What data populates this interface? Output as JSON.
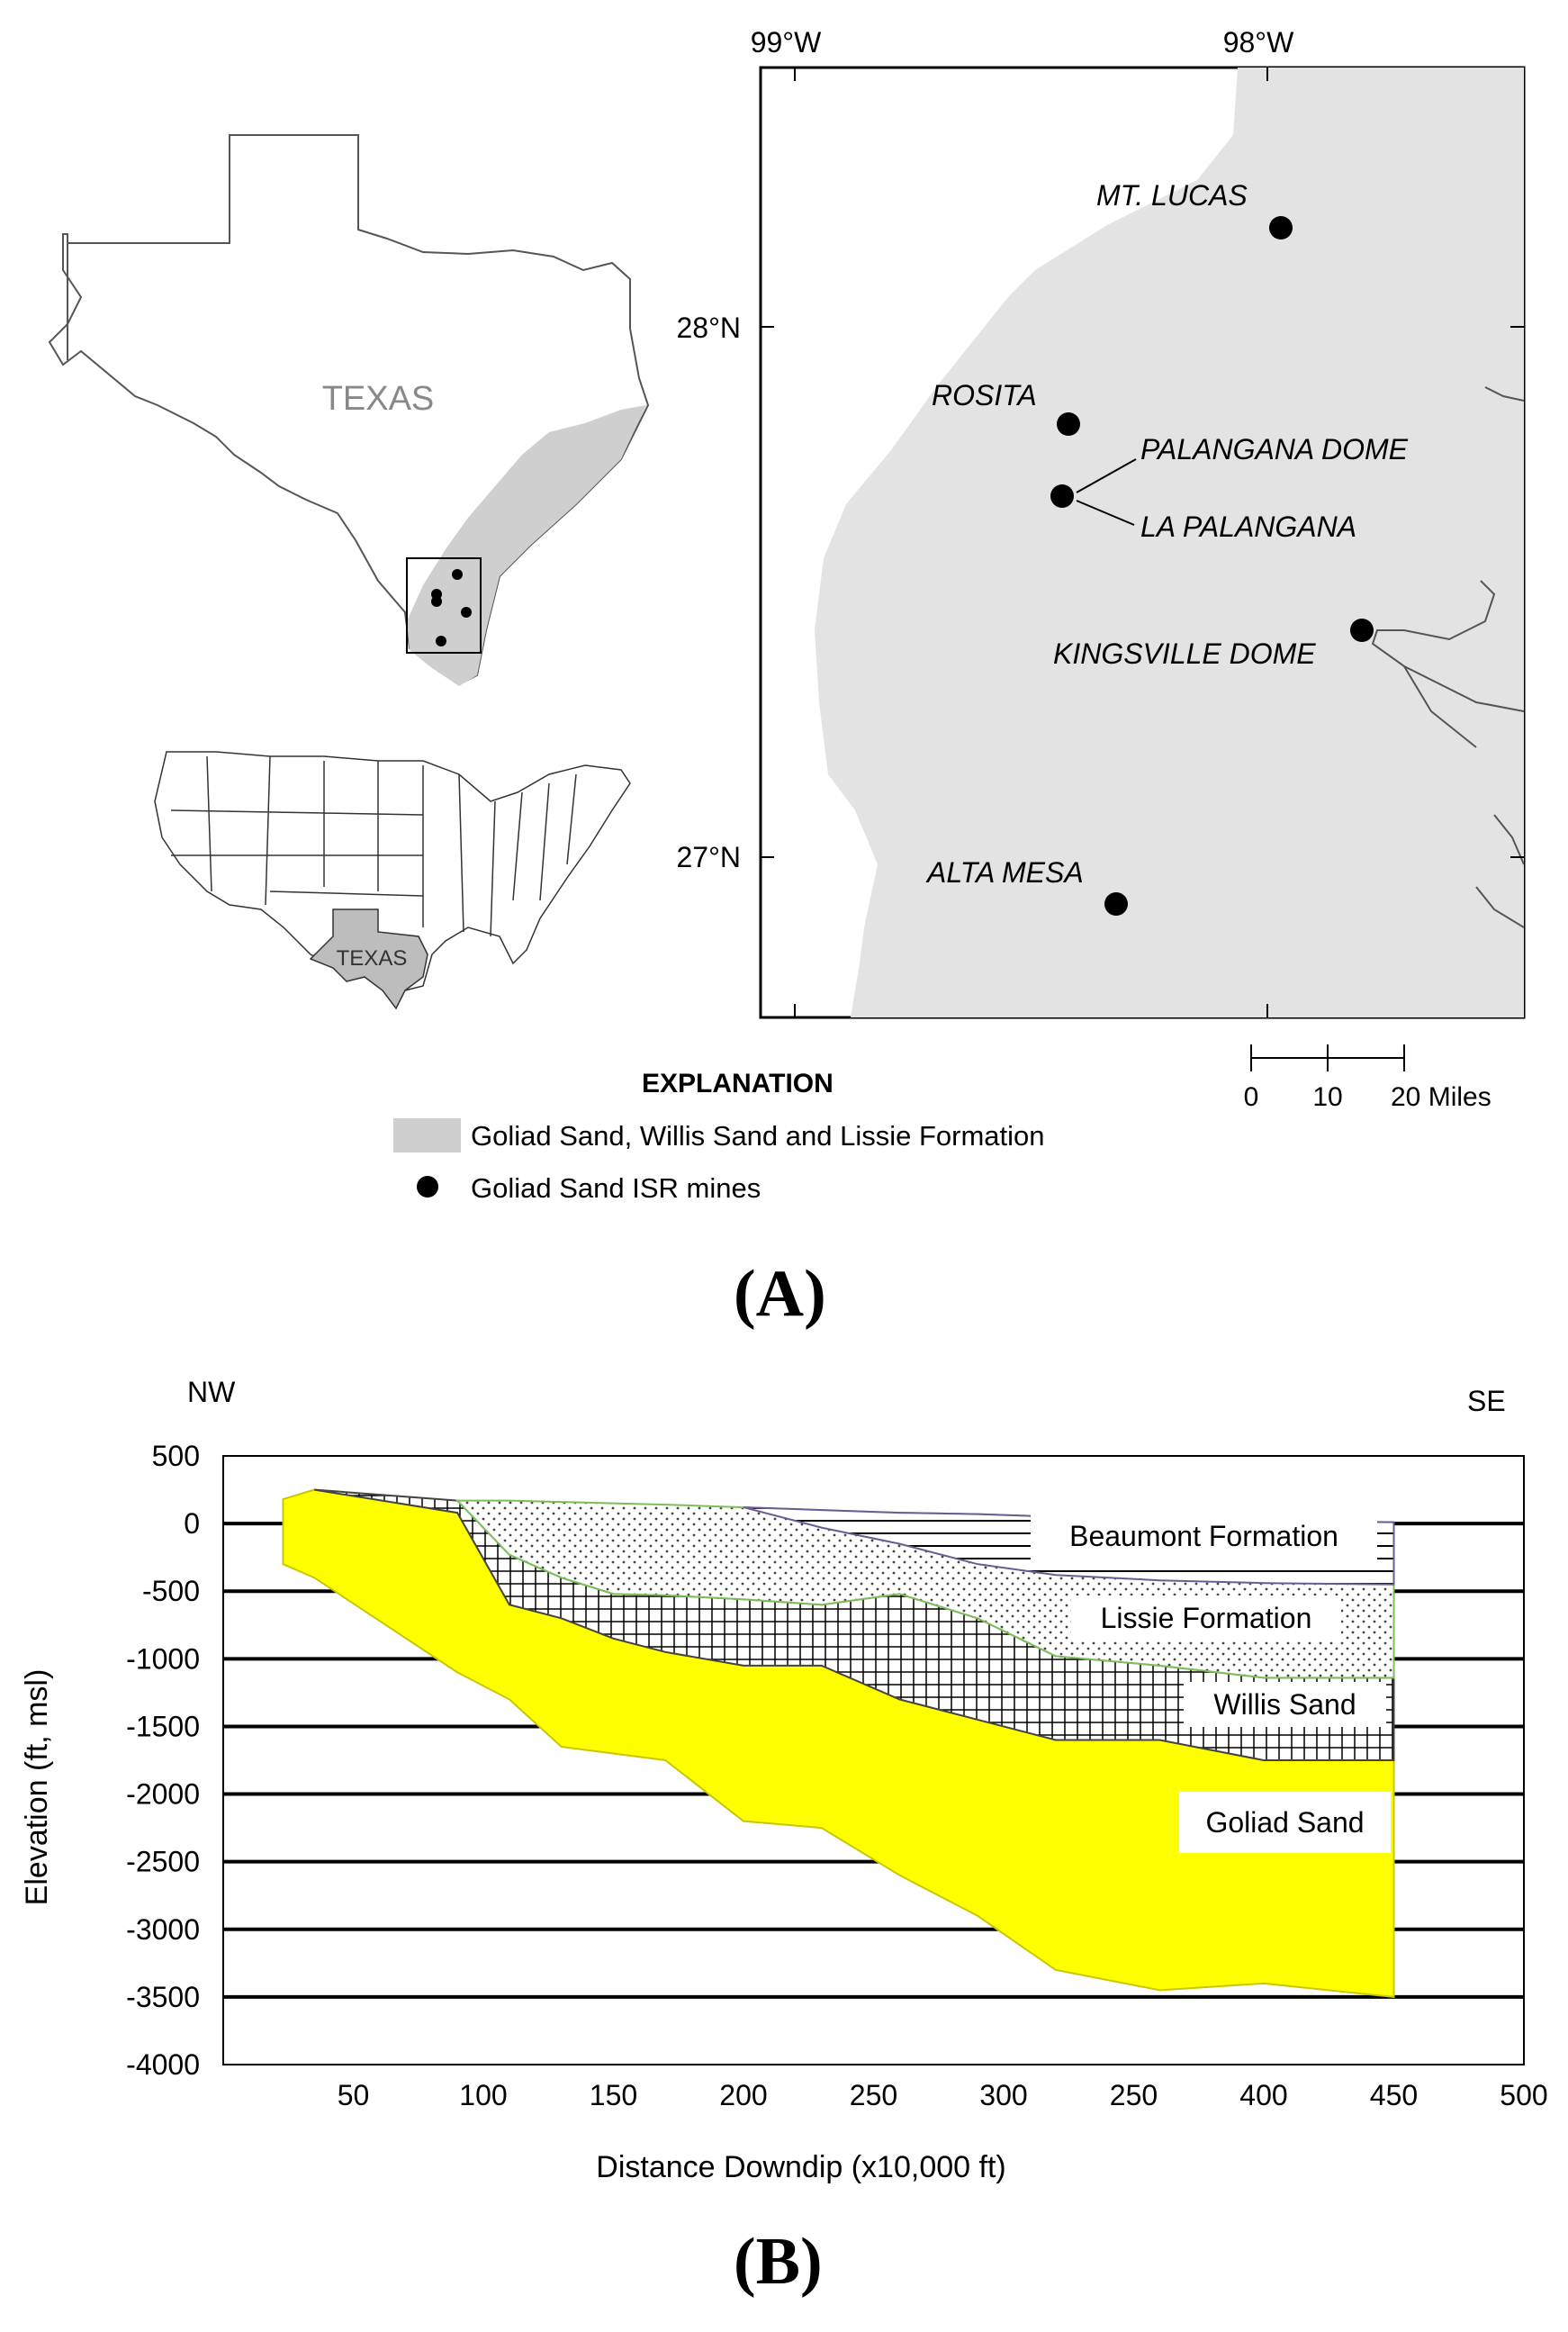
{
  "panel_a": {
    "label": "(A)",
    "texas_label": "TEXAS",
    "us_texas_label": "TEXAS",
    "longitudes": [
      "99°W",
      "98°W"
    ],
    "latitudes": [
      "28°N",
      "27°N"
    ],
    "mines": [
      {
        "name": "MT. LUCAS"
      },
      {
        "name": "ROSITA"
      },
      {
        "name": "PALANGANA DOME"
      },
      {
        "name": "LA PALANGANA"
      },
      {
        "name": "KINGSVILLE DOME"
      },
      {
        "name": "ALTA MESA"
      }
    ],
    "scale": {
      "ticks": [
        "0",
        "10",
        "20 Miles"
      ]
    },
    "explanation": {
      "title": "EXPLANATION",
      "formation_label": "Goliad Sand, Willis Sand and Lissie Formation",
      "mines_label": "Goliad Sand ISR mines"
    },
    "colors": {
      "formation": "#e3e3e3",
      "mine": "#000000"
    }
  },
  "panel_b": {
    "label": "(B)",
    "direction_left": "NW",
    "direction_right": "SE",
    "chart_data": {
      "type": "area",
      "title": "",
      "xlabel": "Distance Downdip (x10,000 ft)",
      "ylabel": "Elevation (ft, msl)",
      "x_tick_labels": [
        "50",
        "100",
        "150",
        "200",
        "250",
        "300",
        "250",
        "400",
        "450",
        "500"
      ],
      "y_ticks": [
        500,
        0,
        -500,
        -1000,
        -1500,
        -2000,
        -2500,
        -3000,
        -3500,
        -4000
      ],
      "ylim": [
        -4000,
        500
      ],
      "xlim": [
        0,
        500
      ],
      "grid": "horizontal",
      "series": [
        {
          "name": "Beaumont Formation",
          "fill": "horizontal hatch",
          "x": [
            200,
            230,
            260,
            290,
            320,
            360,
            400,
            450
          ],
          "top": [
            120,
            100,
            80,
            70,
            50,
            30,
            20,
            10
          ],
          "bottom": [
            120,
            -30,
            -150,
            -300,
            -380,
            -420,
            -440,
            -450
          ]
        },
        {
          "name": "Lissie Formation",
          "fill": "stipple",
          "x": [
            90,
            110,
            130,
            150,
            170,
            200,
            230,
            260,
            290,
            320,
            360,
            400,
            450
          ],
          "top": [
            170,
            170,
            160,
            150,
            140,
            120,
            100,
            80,
            70,
            50,
            30,
            20,
            10
          ],
          "bottom": [
            170,
            -230,
            -400,
            -520,
            -530,
            -560,
            -600,
            -520,
            -700,
            -980,
            -1050,
            -1140,
            -1140
          ]
        },
        {
          "name": "Willis Sand",
          "fill": "crosshatch",
          "x": [
            35,
            90,
            110,
            130,
            150,
            170,
            200,
            230,
            260,
            290,
            320,
            360,
            400,
            450
          ],
          "top": [
            250,
            170,
            -230,
            -400,
            -520,
            -530,
            -560,
            -600,
            -520,
            -700,
            -980,
            -1050,
            -1140,
            -1140
          ],
          "bottom": [
            250,
            80,
            -600,
            -700,
            -850,
            -950,
            -1050,
            -1050,
            -1300,
            -1450,
            -1600,
            -1600,
            -1750,
            -1750
          ]
        },
        {
          "name": "Goliad Sand",
          "fill": "#ffff00",
          "x": [
            23,
            35,
            90,
            110,
            130,
            150,
            170,
            200,
            230,
            260,
            290,
            320,
            360,
            400,
            450
          ],
          "top": [
            180,
            250,
            80,
            -600,
            -700,
            -850,
            -950,
            -1050,
            -1050,
            -1300,
            -1450,
            -1600,
            -1600,
            -1750,
            -1750
          ],
          "bottom": [
            -300,
            -400,
            -1100,
            -1300,
            -1650,
            -1700,
            -1750,
            -2200,
            -2250,
            -2600,
            -2900,
            -3300,
            -3450,
            -3400,
            -3500
          ]
        }
      ]
    }
  }
}
